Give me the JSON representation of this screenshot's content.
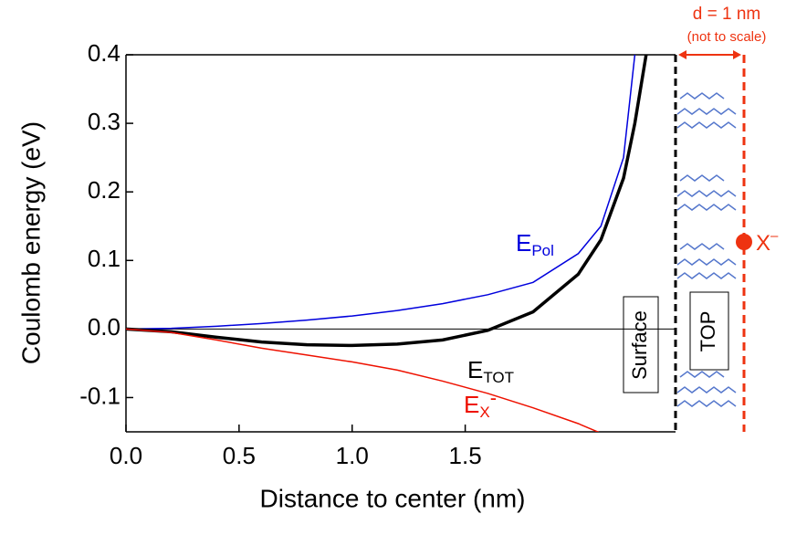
{
  "chart_data": {
    "type": "line",
    "x_label": "Distance to center (nm)",
    "y_label": "Coulomb energy (eV)",
    "xlim": [
      0,
      2.43
    ],
    "ylim": [
      -0.15,
      0.4
    ],
    "xticks": [
      {
        "value": 0,
        "label": "0.0"
      },
      {
        "value": 0.5,
        "label": "0.5"
      },
      {
        "value": 1,
        "label": "1.0"
      },
      {
        "value": 1.5,
        "label": "1.5"
      }
    ],
    "yticks": [
      -0.1,
      {
        "value": 0,
        "label": "0.0"
      },
      0.1,
      0.2,
      0.3,
      0.4
    ],
    "zero_line": true,
    "x": [
      0,
      0.2,
      0.4,
      0.6,
      0.8,
      1.0,
      1.2,
      1.4,
      1.6,
      1.8,
      2.0,
      2.1,
      2.2,
      2.25,
      2.3
    ],
    "series": [
      {
        "name": "E",
        "name_sub": "Pol",
        "color": "#0000dd",
        "width": 1.5,
        "values": [
          0,
          0.001,
          0.004,
          0.008,
          0.013,
          0.019,
          0.027,
          0.037,
          0.05,
          0.068,
          0.11,
          0.15,
          0.25,
          0.4,
          null
        ]
      },
      {
        "name": "E",
        "name_sub": "TOT",
        "color": "#000000",
        "width": 3.5,
        "values": [
          0,
          -0.004,
          -0.012,
          -0.019,
          -0.023,
          -0.024,
          -0.022,
          -0.016,
          -0.002,
          0.025,
          0.08,
          0.13,
          0.22,
          0.3,
          0.4
        ]
      },
      {
        "name": "E",
        "name_sub": "X",
        "name_sup": "-",
        "color": "#ee1100",
        "width": 1.5,
        "values": [
          0,
          -0.005,
          -0.016,
          -0.028,
          -0.038,
          -0.048,
          -0.06,
          -0.076,
          -0.094,
          -0.115,
          -0.138,
          -0.152,
          null,
          null,
          null
        ]
      }
    ],
    "annotations": {
      "surface": "Surface",
      "top": "TOP",
      "distance": "d = 1 nm",
      "scale_note": "(not to scale)",
      "exciton": "X",
      "exciton_sup": "–"
    }
  }
}
